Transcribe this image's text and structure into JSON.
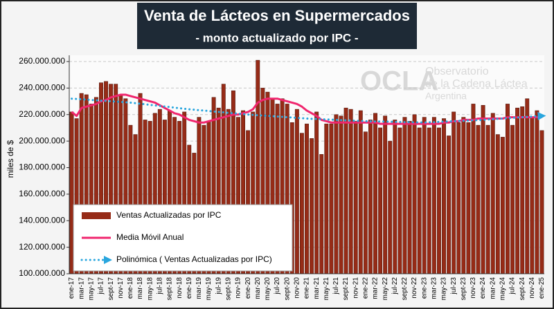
{
  "chart_data": {
    "type": "bar",
    "title": "Venta de Lácteos en Supermercados",
    "subtitle": "- monto actualizado por IPC -",
    "y_label": "miles de $",
    "ylim": [
      100000000,
      260000000
    ],
    "yticks": [
      {
        "value": 100000000,
        "label": "100.000.000"
      },
      {
        "value": 120000000,
        "label": "120.000.000"
      },
      {
        "value": 140000000,
        "label": "140.000.000"
      },
      {
        "value": 160000000,
        "label": "160.000.000"
      },
      {
        "value": 180000000,
        "label": "180.000.000"
      },
      {
        "value": 200000000,
        "label": "200.000.000"
      },
      {
        "value": 220000000,
        "label": "220.000.000"
      },
      {
        "value": 240000000,
        "label": "240.000.000"
      },
      {
        "value": 260000000,
        "label": "260.000.000"
      }
    ],
    "grid": true,
    "categories": [
      "ene-17",
      null,
      "mar-17",
      null,
      "may-17",
      null,
      "jul-17",
      null,
      "sept-17",
      null,
      "nov-17",
      null,
      "ene-18",
      null,
      "mar-18",
      null,
      "may-18",
      null,
      "jul-18",
      null,
      "sept-18",
      null,
      "nov-18",
      null,
      "ene-19",
      null,
      "mar-19",
      null,
      "may-19",
      null,
      "jul-19",
      null,
      "sept-19",
      null,
      "nov-19",
      null,
      "ene-20",
      null,
      "mar-20",
      null,
      "may-20",
      null,
      "jul-20",
      null,
      "sept-20",
      null,
      "nov-20",
      null,
      "ene-21",
      null,
      "mar-21",
      null,
      "may-21",
      null,
      "jul-21",
      null,
      "sept-21",
      null,
      "nov-21",
      null,
      "ene-22",
      null,
      "mar-22",
      null,
      "may-22",
      null,
      "jul-22",
      null,
      "sept-22",
      null,
      "nov-22",
      null,
      "ene-23",
      null,
      "mar-23",
      null,
      "may-23",
      null,
      "jul-23",
      null,
      "sept-23",
      null,
      "nov-23",
      null,
      "ene-24",
      null,
      "mar-24",
      null,
      "may-24",
      null,
      "jul-24",
      null,
      "sept-24",
      null,
      "nov-24",
      null,
      "ene-25"
    ],
    "series": [
      {
        "name": "Ventas Actualizadas por IPC",
        "type": "bar",
        "color": "#962b17",
        "values": [
          222000000,
          217000000,
          236000000,
          235000000,
          228000000,
          233000000,
          244000000,
          245000000,
          243000000,
          243000000,
          235000000,
          232000000,
          212000000,
          205000000,
          236000000,
          216000000,
          215000000,
          221000000,
          224000000,
          216000000,
          223000000,
          218000000,
          215000000,
          222000000,
          197000000,
          191000000,
          218000000,
          212000000,
          215000000,
          233000000,
          225000000,
          243000000,
          224000000,
          238000000,
          218000000,
          223000000,
          208000000,
          222000000,
          261000000,
          240000000,
          237000000,
          232000000,
          228000000,
          232000000,
          228000000,
          214000000,
          224000000,
          206000000,
          213000000,
          202000000,
          222000000,
          190000000,
          213000000,
          213000000,
          220000000,
          219000000,
          225000000,
          224000000,
          215000000,
          223000000,
          207000000,
          216000000,
          221000000,
          210000000,
          219000000,
          200000000,
          216000000,
          210000000,
          218000000,
          215000000,
          220000000,
          210000000,
          218000000,
          210000000,
          218000000,
          210000000,
          217000000,
          204000000,
          222000000,
          214000000,
          218000000,
          214000000,
          228000000,
          212000000,
          227000000,
          212000000,
          221000000,
          205000000,
          203000000,
          228000000,
          212000000,
          225000000,
          226000000,
          232000000,
          218000000,
          223000000,
          208000000
        ]
      },
      {
        "name": "Media Móvil Anual",
        "type": "line",
        "color": "#f0266e",
        "values": [
          222000000,
          219000000,
          225000000,
          226000000,
          227000000,
          228000000,
          230000000,
          231000000,
          233000000,
          234000000,
          235000000,
          235000000,
          234000000,
          233000000,
          232000000,
          231000000,
          230000000,
          229000000,
          227000000,
          225000000,
          223000000,
          221000000,
          220000000,
          218000000,
          216000000,
          215000000,
          214000000,
          214000000,
          215000000,
          216000000,
          217000000,
          218000000,
          219000000,
          220000000,
          220000000,
          221000000,
          222000000,
          224000000,
          229000000,
          231000000,
          232000000,
          232000000,
          232000000,
          231000000,
          230000000,
          229000000,
          228000000,
          226000000,
          223000000,
          221000000,
          219000000,
          216000000,
          215000000,
          214000000,
          214000000,
          214000000,
          214000000,
          214000000,
          214000000,
          214000000,
          214000000,
          214000000,
          214000000,
          213000000,
          213000000,
          213000000,
          213000000,
          213000000,
          213000000,
          213000000,
          213000000,
          213000000,
          213000000,
          213000000,
          213000000,
          213000000,
          214000000,
          214000000,
          215000000,
          215000000,
          216000000,
          216000000,
          216000000,
          217000000,
          217000000,
          217000000,
          217000000,
          217000000,
          217000000,
          218000000,
          218000000,
          218000000,
          218000000,
          218000000,
          218000000,
          218000000,
          218000000
        ]
      },
      {
        "name": "Polinómica ( Ventas Actualizadas por IPC)",
        "type": "trend",
        "color": "#29a6de",
        "values": [
          232000000,
          231800000,
          231500000,
          231300000,
          231000000,
          230800000,
          230500000,
          230300000,
          230000000,
          229800000,
          229500000,
          229300000,
          229000000,
          228600000,
          228200000,
          227800000,
          227300000,
          226900000,
          226500000,
          226100000,
          225700000,
          225200000,
          224800000,
          224400000,
          224000000,
          223700000,
          223300000,
          223000000,
          222700000,
          222300000,
          222000000,
          221700000,
          221300000,
          221000000,
          220700000,
          220300000,
          220000000,
          219800000,
          219500000,
          219300000,
          219000000,
          218800000,
          218500000,
          218300000,
          218000000,
          217800000,
          217500000,
          217300000,
          217000000,
          216800000,
          216700000,
          216500000,
          216300000,
          216200000,
          216000000,
          215800000,
          215700000,
          215500000,
          215300000,
          215200000,
          215000000,
          214900000,
          214800000,
          214800000,
          214700000,
          214600000,
          214500000,
          214400000,
          214300000,
          214300000,
          214200000,
          214100000,
          214000000,
          214200000,
          214300000,
          214500000,
          214700000,
          214800000,
          215000000,
          215200000,
          215300000,
          215500000,
          215700000,
          215800000,
          216000000,
          216300000,
          216500000,
          216800000,
          217000000,
          217300000,
          217500000,
          217800000,
          218000000,
          218300000,
          218500000,
          218800000,
          219000000
        ]
      }
    ]
  },
  "watermark": {
    "logo": "OCLA",
    "lines": [
      "Observatorio",
      "de la Cadena Láctea",
      "Argentina"
    ]
  }
}
